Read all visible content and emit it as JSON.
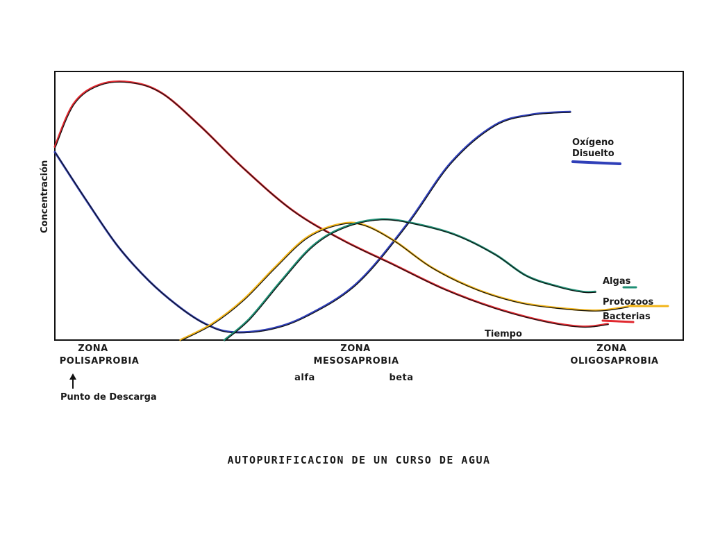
{
  "chart_data": {
    "type": "line",
    "title": "AUTOPURIFICACION DE UN CURSO DE AGUA",
    "xlabel": "Tiempo",
    "ylabel": "Concentración",
    "xlim": [
      0,
      100
    ],
    "ylim": [
      0,
      100
    ],
    "grid": false,
    "legend": "right, inline labels at line ends",
    "series": [
      {
        "name": "Oxígeno Disuelto",
        "color": "#2f3fb8",
        "x": [
          0,
          5,
          10,
          15,
          20,
          24,
          28,
          34,
          40,
          48,
          56,
          63,
          70,
          76,
          82
        ],
        "y": [
          70,
          52,
          35,
          22,
          12,
          6,
          3,
          4,
          9,
          21,
          43,
          66,
          80,
          84,
          85
        ]
      },
      {
        "name": "Bacterias",
        "color": "#e0282f",
        "x": [
          0,
          3,
          7,
          12,
          17,
          23,
          30,
          38,
          46,
          54,
          62,
          70,
          78,
          84,
          88
        ],
        "y": [
          72,
          88,
          95,
          96,
          92,
          80,
          64,
          48,
          37,
          28,
          19,
          12,
          7,
          5,
          6
        ]
      },
      {
        "name": "Protozoos",
        "color": "#f2b418",
        "x": [
          20,
          25,
          30,
          35,
          40,
          45,
          49,
          54,
          60,
          67,
          74,
          80,
          86,
          90,
          92
        ],
        "y": [
          0,
          6,
          15,
          27,
          38,
          43,
          43,
          37,
          27,
          19,
          14,
          12,
          11,
          12,
          13
        ]
      },
      {
        "name": "Algas",
        "color": "#1f8f74",
        "x": [
          27,
          31,
          36,
          41,
          46,
          52,
          58,
          64,
          70,
          75,
          80,
          84,
          86
        ],
        "y": [
          0,
          8,
          22,
          35,
          42,
          45,
          43,
          39,
          32,
          24,
          20,
          18,
          18
        ]
      }
    ],
    "annotations": {
      "x_axis_label": "Tiempo",
      "point_label": "Punto de Descarga",
      "zones": [
        {
          "name": "ZONA",
          "sub": "POLISAPROBIA"
        },
        {
          "name": "ZONA",
          "sub": "MESOSAPROBIA",
          "parts": [
            "alfa",
            "beta"
          ]
        },
        {
          "name": "ZONA",
          "sub": "OLIGOSAPROBIA"
        }
      ]
    }
  }
}
